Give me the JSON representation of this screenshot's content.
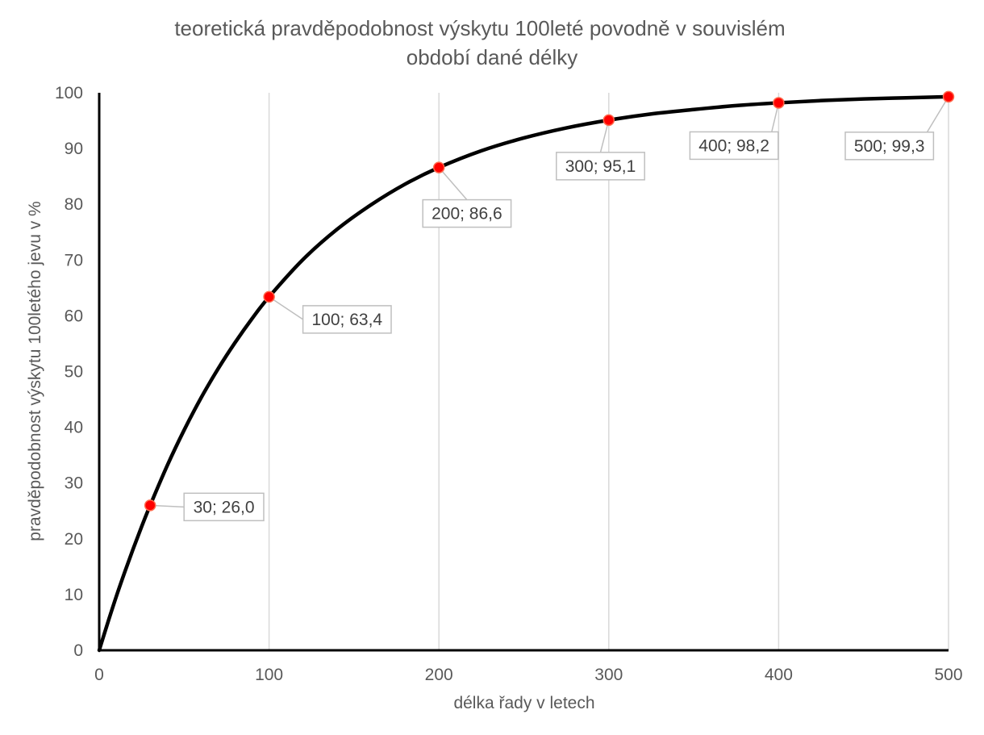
{
  "chart_data": {
    "type": "scatter",
    "title": {
      "line1": "teoretická pravděpodobnost výskytu 100leté povodně v souvislém",
      "line2": "období dané délky"
    },
    "xlabel": "délka řady v letech",
    "ylabel": "pravděpodobnost výskytu 100letého jevu v %",
    "xlim": [
      0,
      500
    ],
    "ylim": [
      0,
      100
    ],
    "x_ticks": [
      0,
      100,
      200,
      300,
      400,
      500
    ],
    "y_ticks": [
      0,
      10,
      20,
      30,
      40,
      50,
      60,
      70,
      80,
      90,
      100
    ],
    "grid": {
      "vertical": true,
      "horizontal": false
    },
    "series": [
      {
        "style": "smooth-line",
        "color": "#000000",
        "x": [
          0,
          5,
          10,
          15,
          20,
          25,
          30,
          40,
          50,
          60,
          70,
          80,
          90,
          100,
          120,
          140,
          160,
          180,
          200,
          225,
          250,
          275,
          300,
          325,
          350,
          375,
          400,
          425,
          450,
          475,
          500
        ],
        "y": [
          0,
          4.9,
          9.6,
          14.0,
          18.2,
          22.2,
          26.0,
          33.1,
          39.5,
          45.3,
          50.5,
          55.2,
          59.5,
          63.4,
          70.1,
          75.5,
          79.9,
          83.6,
          86.6,
          89.6,
          91.9,
          93.7,
          95.1,
          96.2,
          97.0,
          97.7,
          98.2,
          98.6,
          98.9,
          99.1,
          99.3
        ]
      },
      {
        "style": "markers",
        "color": "#ff0000",
        "points": [
          {
            "x": 30,
            "y": 26.0,
            "label": "30; 26,0"
          },
          {
            "x": 100,
            "y": 63.4,
            "label": "100; 63,4"
          },
          {
            "x": 200,
            "y": 86.6,
            "label": "200; 86,6"
          },
          {
            "x": 300,
            "y": 95.1,
            "label": "300; 95,1"
          },
          {
            "x": 400,
            "y": 98.2,
            "label": "400; 98,2"
          },
          {
            "x": 500,
            "y": 99.3,
            "label": "500; 99,3"
          }
        ]
      }
    ],
    "colors": {
      "text": "#595959",
      "grid": "#d9d9d9",
      "axis": "#000000",
      "label_border": "#bfbfbf"
    }
  }
}
